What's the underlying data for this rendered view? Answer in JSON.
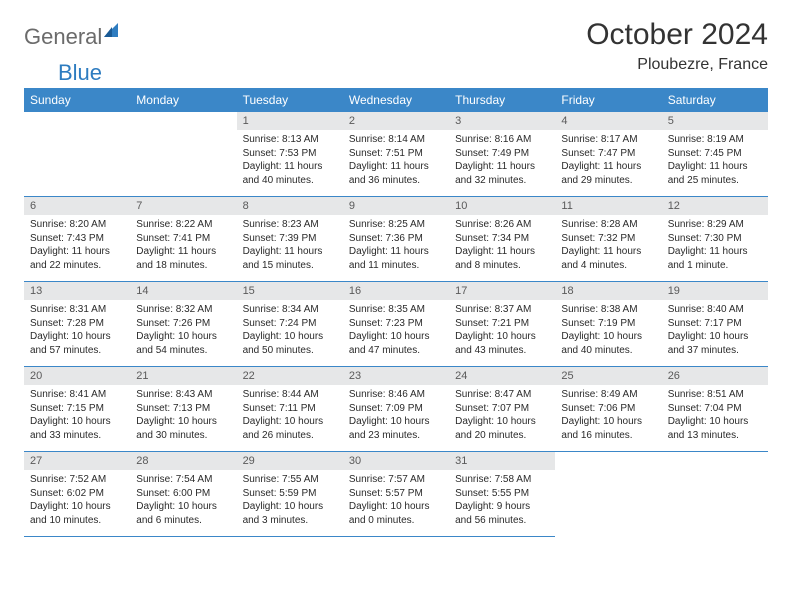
{
  "logo": {
    "textGray": "General",
    "textBlue": "Blue"
  },
  "header": {
    "title": "October 2024",
    "location": "Ploubezre, France"
  },
  "colors": {
    "headerBar": "#3b87c8",
    "dayNumBg": "#e6e7e8",
    "rowBorder": "#3b87c8",
    "logoGray": "#6b6b6b",
    "logoBlue": "#2e7cc0"
  },
  "dayNames": [
    "Sunday",
    "Monday",
    "Tuesday",
    "Wednesday",
    "Thursday",
    "Friday",
    "Saturday"
  ],
  "weeks": [
    [
      null,
      null,
      {
        "n": "1",
        "sunrise": "8:13 AM",
        "sunset": "7:53 PM",
        "dl": "11 hours and 40 minutes."
      },
      {
        "n": "2",
        "sunrise": "8:14 AM",
        "sunset": "7:51 PM",
        "dl": "11 hours and 36 minutes."
      },
      {
        "n": "3",
        "sunrise": "8:16 AM",
        "sunset": "7:49 PM",
        "dl": "11 hours and 32 minutes."
      },
      {
        "n": "4",
        "sunrise": "8:17 AM",
        "sunset": "7:47 PM",
        "dl": "11 hours and 29 minutes."
      },
      {
        "n": "5",
        "sunrise": "8:19 AM",
        "sunset": "7:45 PM",
        "dl": "11 hours and 25 minutes."
      }
    ],
    [
      {
        "n": "6",
        "sunrise": "8:20 AM",
        "sunset": "7:43 PM",
        "dl": "11 hours and 22 minutes."
      },
      {
        "n": "7",
        "sunrise": "8:22 AM",
        "sunset": "7:41 PM",
        "dl": "11 hours and 18 minutes."
      },
      {
        "n": "8",
        "sunrise": "8:23 AM",
        "sunset": "7:39 PM",
        "dl": "11 hours and 15 minutes."
      },
      {
        "n": "9",
        "sunrise": "8:25 AM",
        "sunset": "7:36 PM",
        "dl": "11 hours and 11 minutes."
      },
      {
        "n": "10",
        "sunrise": "8:26 AM",
        "sunset": "7:34 PM",
        "dl": "11 hours and 8 minutes."
      },
      {
        "n": "11",
        "sunrise": "8:28 AM",
        "sunset": "7:32 PM",
        "dl": "11 hours and 4 minutes."
      },
      {
        "n": "12",
        "sunrise": "8:29 AM",
        "sunset": "7:30 PM",
        "dl": "11 hours and 1 minute."
      }
    ],
    [
      {
        "n": "13",
        "sunrise": "8:31 AM",
        "sunset": "7:28 PM",
        "dl": "10 hours and 57 minutes."
      },
      {
        "n": "14",
        "sunrise": "8:32 AM",
        "sunset": "7:26 PM",
        "dl": "10 hours and 54 minutes."
      },
      {
        "n": "15",
        "sunrise": "8:34 AM",
        "sunset": "7:24 PM",
        "dl": "10 hours and 50 minutes."
      },
      {
        "n": "16",
        "sunrise": "8:35 AM",
        "sunset": "7:23 PM",
        "dl": "10 hours and 47 minutes."
      },
      {
        "n": "17",
        "sunrise": "8:37 AM",
        "sunset": "7:21 PM",
        "dl": "10 hours and 43 minutes."
      },
      {
        "n": "18",
        "sunrise": "8:38 AM",
        "sunset": "7:19 PM",
        "dl": "10 hours and 40 minutes."
      },
      {
        "n": "19",
        "sunrise": "8:40 AM",
        "sunset": "7:17 PM",
        "dl": "10 hours and 37 minutes."
      }
    ],
    [
      {
        "n": "20",
        "sunrise": "8:41 AM",
        "sunset": "7:15 PM",
        "dl": "10 hours and 33 minutes."
      },
      {
        "n": "21",
        "sunrise": "8:43 AM",
        "sunset": "7:13 PM",
        "dl": "10 hours and 30 minutes."
      },
      {
        "n": "22",
        "sunrise": "8:44 AM",
        "sunset": "7:11 PM",
        "dl": "10 hours and 26 minutes."
      },
      {
        "n": "23",
        "sunrise": "8:46 AM",
        "sunset": "7:09 PM",
        "dl": "10 hours and 23 minutes."
      },
      {
        "n": "24",
        "sunrise": "8:47 AM",
        "sunset": "7:07 PM",
        "dl": "10 hours and 20 minutes."
      },
      {
        "n": "25",
        "sunrise": "8:49 AM",
        "sunset": "7:06 PM",
        "dl": "10 hours and 16 minutes."
      },
      {
        "n": "26",
        "sunrise": "8:51 AM",
        "sunset": "7:04 PM",
        "dl": "10 hours and 13 minutes."
      }
    ],
    [
      {
        "n": "27",
        "sunrise": "7:52 AM",
        "sunset": "6:02 PM",
        "dl": "10 hours and 10 minutes."
      },
      {
        "n": "28",
        "sunrise": "7:54 AM",
        "sunset": "6:00 PM",
        "dl": "10 hours and 6 minutes."
      },
      {
        "n": "29",
        "sunrise": "7:55 AM",
        "sunset": "5:59 PM",
        "dl": "10 hours and 3 minutes."
      },
      {
        "n": "30",
        "sunrise": "7:57 AM",
        "sunset": "5:57 PM",
        "dl": "10 hours and 0 minutes."
      },
      {
        "n": "31",
        "sunrise": "7:58 AM",
        "sunset": "5:55 PM",
        "dl": "9 hours and 56 minutes."
      },
      null,
      null
    ]
  ],
  "labels": {
    "sunrise": "Sunrise:",
    "sunset": "Sunset:",
    "daylight": "Daylight:"
  }
}
